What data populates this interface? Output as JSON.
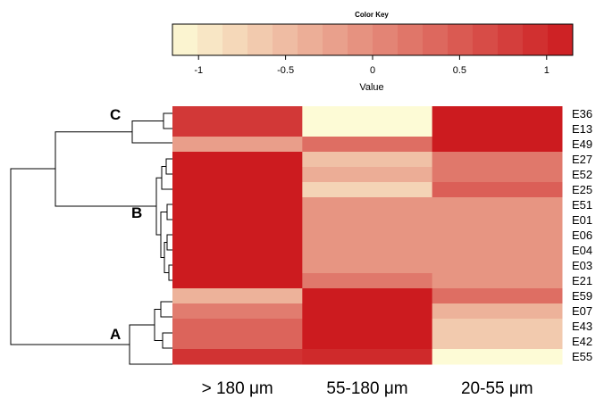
{
  "chart_data": {
    "type": "heatmap",
    "title": "",
    "color_key": {
      "title": "Color Key",
      "label": "Value",
      "range": [
        -1.15,
        1.15
      ],
      "ticks": [
        -1,
        -0.5,
        0,
        0.5,
        1
      ],
      "tick_labels": [
        "-1",
        "-0.5",
        "0",
        "0.5",
        "1"
      ],
      "bins": 16,
      "color_low": "#fdfbd6",
      "color_high": "#cc1b1f"
    },
    "columns": [
      "> 180 μm",
      "55-180 μm",
      "20-55 μm"
    ],
    "rows": [
      "E36",
      "E13",
      "E49",
      "E27",
      "E52",
      "E25",
      "E51",
      "E01",
      "E06",
      "E04",
      "E03",
      "E21",
      "E59",
      "E07",
      "E43",
      "E42",
      "E55"
    ],
    "values": [
      [
        0.85,
        -1.15,
        1.15
      ],
      [
        0.85,
        -1.15,
        1.15
      ],
      [
        -0.2,
        0.3,
        1.15
      ],
      [
        1.15,
        -0.55,
        0.2
      ],
      [
        1.15,
        -0.35,
        0.2
      ],
      [
        1.15,
        -0.75,
        0.45
      ],
      [
        1.15,
        -0.1,
        -0.1
      ],
      [
        1.15,
        -0.1,
        -0.1
      ],
      [
        1.15,
        -0.1,
        -0.1
      ],
      [
        1.15,
        -0.1,
        -0.1
      ],
      [
        1.15,
        -0.1,
        -0.1
      ],
      [
        1.15,
        0.2,
        -0.1
      ],
      [
        -0.4,
        1.15,
        0.3
      ],
      [
        0.15,
        1.15,
        -0.4
      ],
      [
        0.4,
        1.15,
        -0.65
      ],
      [
        0.4,
        1.15,
        -0.65
      ],
      [
        0.9,
        1.0,
        -1.15
      ]
    ],
    "clusters": [
      {
        "label": "C",
        "rows": [
          "E36",
          "E13",
          "E49"
        ]
      },
      {
        "label": "B",
        "rows": [
          "E27",
          "E52",
          "E25",
          "E51",
          "E01",
          "E06",
          "E04",
          "E03",
          "E21"
        ]
      },
      {
        "label": "A",
        "rows": [
          "E59",
          "E07",
          "E43",
          "E42",
          "E55"
        ]
      }
    ]
  }
}
